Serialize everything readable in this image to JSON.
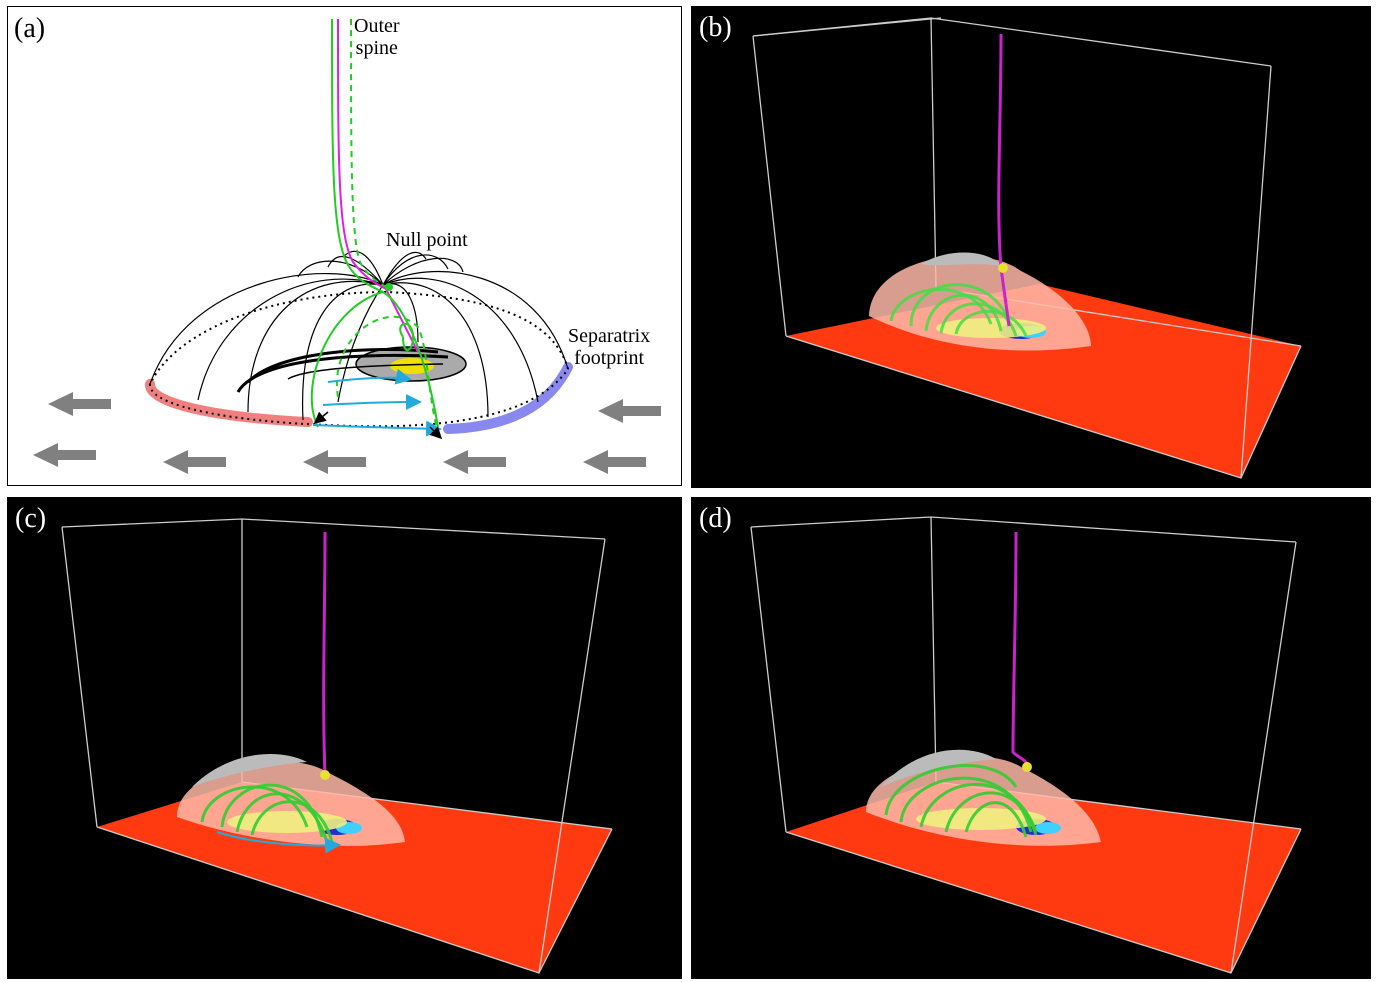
{
  "panels": [
    {
      "label": "(a)"
    },
    {
      "label": "(b)"
    },
    {
      "label": "(c)"
    },
    {
      "label": "(d)"
    }
  ],
  "annotations": {
    "outer_spine_line1": "Outer",
    "outer_spine_line2": "spine",
    "null_point": "Null point",
    "separatrix_line1": "Separatrix",
    "separatrix_line2": "footprint"
  },
  "colors": {
    "spine_magenta": "#e020e0",
    "fieldline_green": "#22cc22",
    "flow_cyan": "#22aadd",
    "flow_arrow_gray": "#808080",
    "footprint_red": "#f08080",
    "footprint_blue": "#8888ee",
    "photosphere_red": "#ff3a10",
    "box_edge": "#cccccc"
  }
}
